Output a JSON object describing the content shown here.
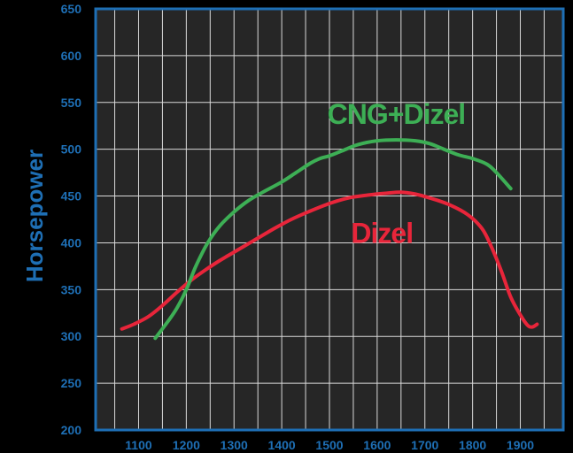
{
  "chart_data": {
    "type": "line",
    "title": "",
    "xlabel": "",
    "ylabel": "Horsepower",
    "xlim": [
      1010,
      1990
    ],
    "ylim": [
      200,
      650
    ],
    "x_ticks": [
      1100,
      1200,
      1300,
      1400,
      1500,
      1600,
      1700,
      1800,
      1900
    ],
    "y_ticks": [
      200,
      250,
      300,
      350,
      400,
      450,
      500,
      550,
      600,
      650
    ],
    "grid": true,
    "legend": "none",
    "colors": {
      "background": "#000000",
      "plot_background": "#262626",
      "grid": "#d9d9d9",
      "frame": "#1e6fb5",
      "axis_text": "#1e6fb5"
    },
    "series": [
      {
        "name": "CNG+Dizel",
        "color": "#3daf55",
        "x": [
          1135,
          1160,
          1180,
          1200,
          1220,
          1245,
          1270,
          1300,
          1330,
          1360,
          1400,
          1430,
          1460,
          1480,
          1500,
          1530,
          1560,
          1600,
          1640,
          1680,
          1710,
          1740,
          1770,
          1800,
          1830,
          1850,
          1880
        ],
        "y": [
          298,
          315,
          330,
          350,
          375,
          400,
          418,
          433,
          445,
          454,
          465,
          475,
          485,
          490,
          493,
          499,
          505,
          509,
          510,
          509,
          506,
          500,
          494,
          490,
          484,
          475,
          458
        ]
      },
      {
        "name": "Dizel",
        "color": "#e8253a",
        "x": [
          1065,
          1090,
          1120,
          1150,
          1180,
          1210,
          1240,
          1270,
          1300,
          1340,
          1380,
          1420,
          1460,
          1500,
          1540,
          1580,
          1620,
          1650,
          1680,
          1710,
          1750,
          1790,
          1820,
          1840,
          1860,
          1880,
          1900,
          1915,
          1925,
          1935
        ],
        "y": [
          308,
          313,
          321,
          333,
          347,
          360,
          371,
          381,
          390,
          402,
          414,
          425,
          434,
          442,
          448,
          451,
          453,
          454,
          452,
          448,
          441,
          430,
          415,
          395,
          370,
          342,
          323,
          312,
          310,
          313
        ]
      }
    ],
    "annotations": [
      {
        "text": "CNG+Dizel",
        "x": 1640,
        "y": 527,
        "color": "#3daf55"
      },
      {
        "text": "Dizel",
        "x": 1610,
        "y": 400,
        "color": "#e8253a"
      }
    ]
  }
}
